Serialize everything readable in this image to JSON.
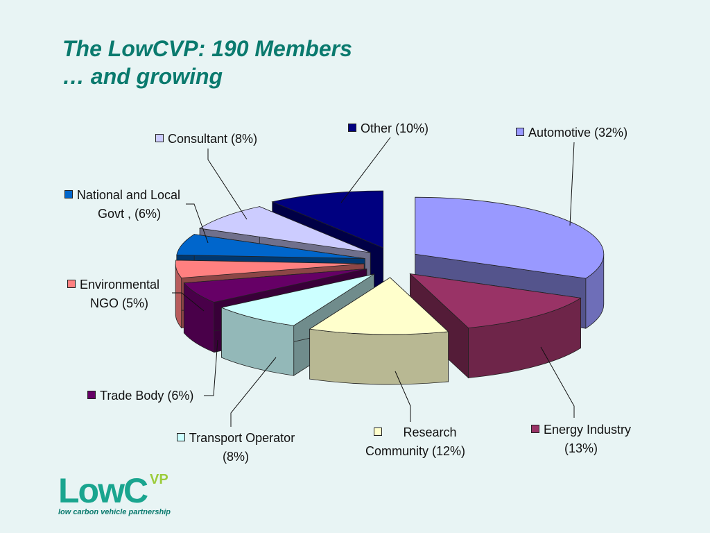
{
  "slide": {
    "title_line1": "The LowCVP: 190 Members",
    "title_line2": "… and growing"
  },
  "logo": {
    "word": "LowC",
    "superscript": "VP",
    "tagline": "low carbon vehicle partnership"
  },
  "chart_data": {
    "type": "pie",
    "style": "3d-exploded",
    "total_members": 190,
    "unit": "%",
    "slices": [
      {
        "label": "Automotive",
        "value": 32,
        "display": "Automotive (32%)",
        "color": "#9999ff"
      },
      {
        "label": "Energy Industry",
        "value": 13,
        "display": "Energy Industry (13%)",
        "color": "#993366"
      },
      {
        "label": "Research Community",
        "value": 12,
        "display": "Research Community (12%)",
        "color": "#ffffcc"
      },
      {
        "label": "Transport Operator",
        "value": 8,
        "display": "Transport Operator (8%)",
        "color": "#ccffff"
      },
      {
        "label": "Trade Body",
        "value": 6,
        "display": "Trade Body (6%)",
        "color": "#660066"
      },
      {
        "label": "Environmental NGO",
        "value": 5,
        "display": "Environmental NGO (5%)",
        "color": "#ff8080"
      },
      {
        "label": "National and Local Govt",
        "value": 6,
        "display": "National and Local Govt , (6%)",
        "color": "#0066cc"
      },
      {
        "label": "Consultant",
        "value": 8,
        "display": "Consultant (8%)",
        "color": "#ccccff"
      },
      {
        "label": "Other",
        "value": 10,
        "display": "Other (10%)",
        "color": "#000080"
      }
    ],
    "labels": {
      "automotive": "Automotive (32%)",
      "energy_1": "Energy Industry",
      "energy_2": "(13%)",
      "research_1": "Research",
      "research_2": "Community (12%)",
      "transport_1": "Transport Operator",
      "transport_2": "(8%)",
      "trade": "Trade Body (6%)",
      "envngo_1": "Environmental",
      "envngo_2": "NGO (5%)",
      "govt_1": "National and Local",
      "govt_2": "Govt , (6%)",
      "consultant": "Consultant (8%)",
      "other": "Other (10%)"
    }
  }
}
